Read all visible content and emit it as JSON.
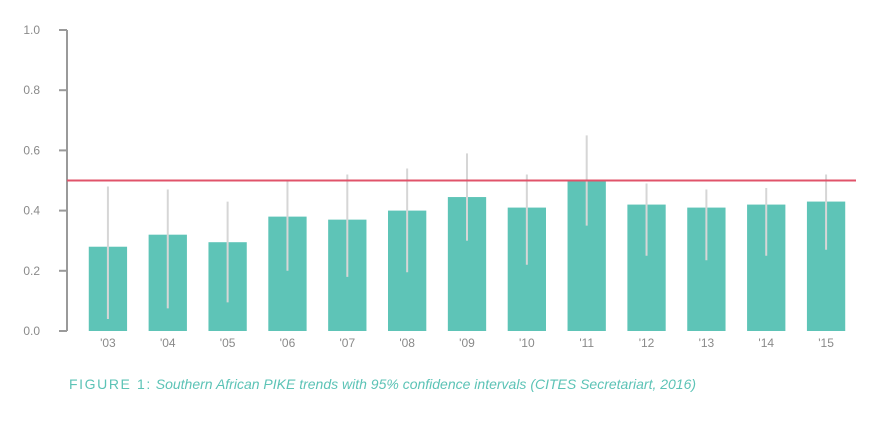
{
  "chart_data": {
    "type": "bar",
    "title": "",
    "xlabel": "",
    "ylabel": "",
    "categories": [
      "'03",
      "'04",
      "'05",
      "'06",
      "'07",
      "'08",
      "'09",
      "'10",
      "'11",
      "'12",
      "'13",
      "'14",
      "'15"
    ],
    "values": [
      0.28,
      0.32,
      0.295,
      0.38,
      0.37,
      0.4,
      0.445,
      0.41,
      0.5,
      0.42,
      0.41,
      0.42,
      0.43
    ],
    "ci_lower": [
      0.04,
      0.075,
      0.095,
      0.2,
      0.18,
      0.195,
      0.3,
      0.22,
      0.35,
      0.25,
      0.235,
      0.25,
      0.27
    ],
    "ci_upper": [
      0.48,
      0.47,
      0.43,
      0.5,
      0.52,
      0.54,
      0.59,
      0.52,
      0.65,
      0.49,
      0.47,
      0.475,
      0.52
    ],
    "threshold": 0.5,
    "ylim": [
      0,
      1.0
    ],
    "yticks": [
      "0.0",
      "0.2",
      "0.4",
      "0.6",
      "0.8",
      "1.0"
    ],
    "colors": {
      "bar": "#5ec4b7",
      "ci": "#d6d6d6",
      "threshold": "#e0536a",
      "axis": "#9a9a9a"
    }
  },
  "caption": {
    "lead": "FIGURE 1:",
    "text": "Southern African PIKE trends with 95% confidence intervals (CITES Secretariart, 2016)"
  }
}
